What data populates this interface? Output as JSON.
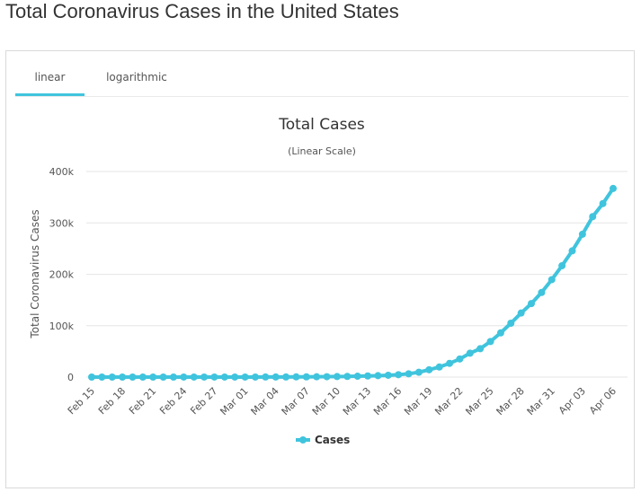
{
  "page": {
    "title": "Total Coronavirus Cases in the United States"
  },
  "tabs": [
    {
      "label": "linear",
      "active": true
    },
    {
      "label": "logarithmic",
      "active": false
    }
  ],
  "colors": {
    "series": "#40c4dd",
    "tab_accent": "#40c4dd",
    "grid": "#e6e6e6"
  },
  "chart_data": {
    "type": "line",
    "title": "Total Cases",
    "subtitle": "(Linear Scale)",
    "xlabel": "",
    "ylabel": "Total Coronavirus Cases",
    "ylim": [
      0,
      400000
    ],
    "yticks": [
      0,
      100000,
      200000,
      300000,
      400000
    ],
    "ytick_labels": [
      "0",
      "100k",
      "200k",
      "300k",
      "400k"
    ],
    "x": [
      "Feb 15",
      "Feb 16",
      "Feb 17",
      "Feb 18",
      "Feb 19",
      "Feb 20",
      "Feb 21",
      "Feb 22",
      "Feb 23",
      "Feb 24",
      "Feb 25",
      "Feb 26",
      "Feb 27",
      "Feb 28",
      "Feb 29",
      "Mar 01",
      "Mar 02",
      "Mar 03",
      "Mar 04",
      "Mar 05",
      "Mar 06",
      "Mar 07",
      "Mar 08",
      "Mar 09",
      "Mar 10",
      "Mar 11",
      "Mar 12",
      "Mar 13",
      "Mar 14",
      "Mar 15",
      "Mar 16",
      "Mar 17",
      "Mar 18",
      "Mar 19",
      "Mar 20",
      "Mar 21",
      "Mar 22",
      "Mar 23",
      "Mar 24",
      "Mar 25",
      "Mar 26",
      "Mar 27",
      "Mar 28",
      "Mar 29",
      "Mar 30",
      "Mar 31",
      "Apr 01",
      "Apr 02",
      "Apr 03",
      "Apr 04",
      "Apr 05",
      "Apr 06"
    ],
    "xtick_labels": [
      "Feb 15",
      "Feb 18",
      "Feb 21",
      "Feb 24",
      "Feb 27",
      "Mar 01",
      "Mar 04",
      "Mar 07",
      "Mar 10",
      "Mar 13",
      "Mar 16",
      "Mar 19",
      "Mar 22",
      "Mar 25",
      "Mar 28",
      "Mar 31",
      "Apr 03",
      "Apr 06"
    ],
    "grid": true,
    "legend": "bottom-center",
    "series": [
      {
        "name": "Cases",
        "values": [
          15,
          15,
          15,
          15,
          15,
          15,
          15,
          15,
          15,
          53,
          53,
          59,
          60,
          62,
          70,
          75,
          100,
          125,
          160,
          225,
          330,
          445,
          590,
          760,
          1020,
          1315,
          1660,
          2180,
          2730,
          3540,
          4660,
          6420,
          9400,
          14250,
          19620,
          26710,
          35220,
          46450,
          55240,
          69200,
          86000,
          104800,
          124600,
          143000,
          164600,
          189600,
          216700,
          245600,
          277900,
          312200,
          337600,
          367000
        ]
      }
    ]
  }
}
